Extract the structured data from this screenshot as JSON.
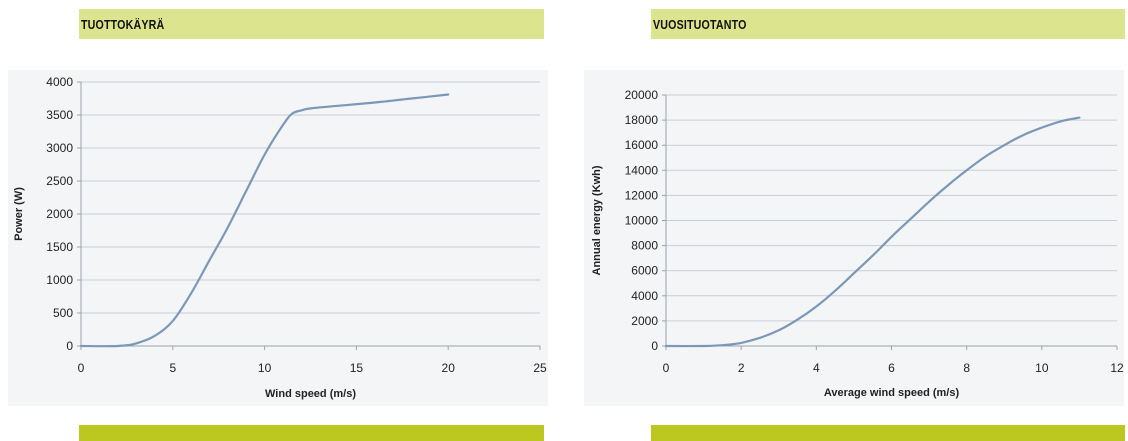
{
  "colors": {
    "header_bg": "#dde48e",
    "footer_bar": "#bcc820",
    "plot_bg": "#f4f5f6",
    "grid": "#c9cfd6",
    "line": "#7a98b8"
  },
  "headers": {
    "left": "TUOTTOKÄYRÄ",
    "right": "VUOSITUOTANTO"
  },
  "chart_data": [
    {
      "type": "line",
      "title": "",
      "xlabel": "Wind speed (m/s)",
      "ylabel": "Power (W)",
      "xlim": [
        0,
        25
      ],
      "ylim": [
        0,
        4000
      ],
      "xticks": [
        0,
        5,
        10,
        15,
        20,
        25
      ],
      "xtick_labels": [
        "0",
        "5",
        "10",
        "15",
        "20",
        "25"
      ],
      "yticks": [
        0,
        500,
        1000,
        1500,
        2000,
        2500,
        3000,
        3500,
        4000
      ],
      "ytick_labels": [
        "0",
        "500",
        "1000",
        "1500",
        "2000",
        "2500",
        "3000",
        "3500",
        "4000"
      ],
      "grid": true,
      "legend": "none",
      "series": [
        {
          "name": "",
          "x": [
            0,
            2,
            3,
            4,
            5,
            6,
            7,
            8,
            9,
            10,
            11,
            11.5,
            12,
            12.5,
            14,
            16,
            18,
            20
          ],
          "y": [
            0,
            0,
            40,
            150,
            380,
            800,
            1300,
            1800,
            2350,
            2900,
            3350,
            3520,
            3570,
            3600,
            3640,
            3690,
            3750,
            3810
          ]
        }
      ]
    },
    {
      "type": "line",
      "title": "",
      "xlabel": "Average wind speed (m/s)",
      "ylabel": "Annual energy (Kwh)",
      "xlim": [
        0,
        12
      ],
      "ylim": [
        0,
        20000
      ],
      "xticks": [
        0,
        2,
        4,
        6,
        8,
        10,
        12
      ],
      "xtick_labels": [
        "0",
        "2",
        "4",
        "6",
        "8",
        "10",
        "12"
      ],
      "yticks": [
        0,
        2000,
        4000,
        6000,
        8000,
        10000,
        12000,
        14000,
        16000,
        18000,
        20000
      ],
      "ytick_labels": [
        "0",
        "2000",
        "4000",
        "6000",
        "8000",
        "10000",
        "12000",
        "14000",
        "16000",
        "18000",
        "20000"
      ],
      "grid": true,
      "legend": "none",
      "series": [
        {
          "name": "",
          "x": [
            0,
            1,
            1.5,
            2,
            2.5,
            3,
            3.5,
            4,
            4.5,
            5,
            5.5,
            6,
            6.5,
            7,
            7.5,
            8,
            8.5,
            9,
            9.5,
            10,
            10.5,
            11
          ],
          "y": [
            0,
            0,
            60,
            250,
            650,
            1250,
            2100,
            3150,
            4400,
            5800,
            7200,
            8700,
            10100,
            11500,
            12800,
            14000,
            15100,
            16000,
            16800,
            17400,
            17900,
            18200
          ]
        }
      ]
    }
  ]
}
